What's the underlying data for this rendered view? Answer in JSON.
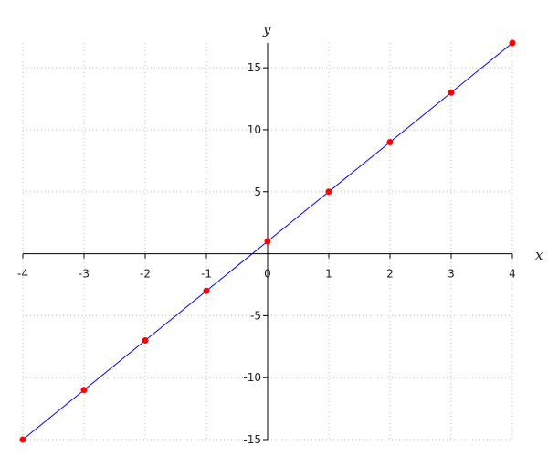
{
  "chart_data": {
    "type": "line",
    "title": "",
    "xlabel": "x",
    "ylabel": "y",
    "xlim": [
      -4,
      4
    ],
    "ylim": [
      -15,
      17
    ],
    "x_ticks": [
      -4,
      -3,
      -2,
      -1,
      0,
      1,
      2,
      3,
      4
    ],
    "y_ticks": [
      -15,
      -10,
      -5,
      5,
      10,
      15
    ],
    "x_tick_labels": [
      "-4",
      "-3",
      "-2",
      "-1",
      "0",
      "1",
      "2",
      "3",
      "4"
    ],
    "y_tick_labels": [
      "-15",
      "-10",
      "-5",
      "5",
      "10",
      "15"
    ],
    "grid": true,
    "series": [
      {
        "x": [
          -4,
          -3,
          -2,
          -1,
          0,
          1,
          2,
          3,
          4
        ],
        "y": [
          -15,
          -11,
          -7,
          -3,
          1,
          5,
          9,
          13,
          17
        ],
        "line_color": "#0000ff",
        "marker_color": "#ff0000"
      }
    ]
  }
}
